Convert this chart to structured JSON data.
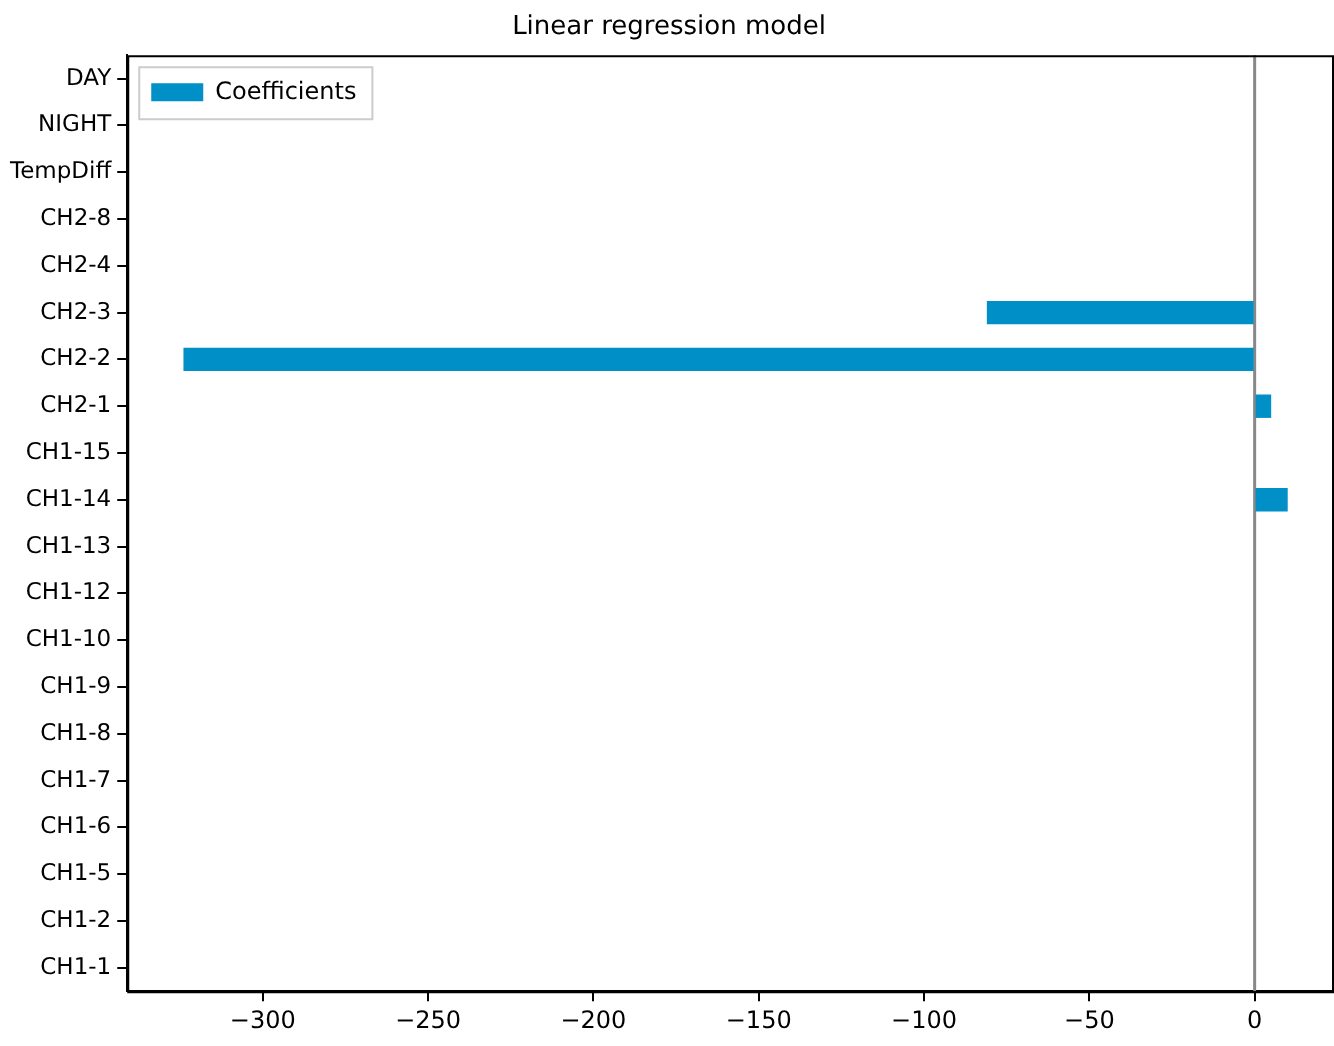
{
  "chart_data": {
    "type": "bar",
    "orientation": "horizontal",
    "title": "Linear regression model",
    "categories": [
      "DAY",
      "NIGHT",
      "TempDiff",
      "CH2-8",
      "CH2-4",
      "CH2-3",
      "CH2-2",
      "CH2-1",
      "CH1-15",
      "CH1-14",
      "CH1-13",
      "CH1-12",
      "CH1-10",
      "CH1-9",
      "CH1-8",
      "CH1-7",
      "CH1-6",
      "CH1-5",
      "CH1-2",
      "CH1-1"
    ],
    "series": [
      {
        "name": "Coefficients",
        "color": "#008fc6",
        "values": [
          0,
          0,
          0,
          0,
          0,
          -81,
          -324,
          5,
          0,
          10,
          0,
          0,
          0,
          0,
          0,
          0,
          0,
          0,
          0,
          0
        ]
      }
    ],
    "xlim": [
      -341,
      24
    ],
    "xticks": [
      -300,
      -250,
      -200,
      -150,
      -100,
      -50,
      0
    ],
    "ref_lines": [
      {
        "axis": "x",
        "value": 0,
        "color": "#888888"
      }
    ],
    "grid": false,
    "legend": "top left"
  }
}
